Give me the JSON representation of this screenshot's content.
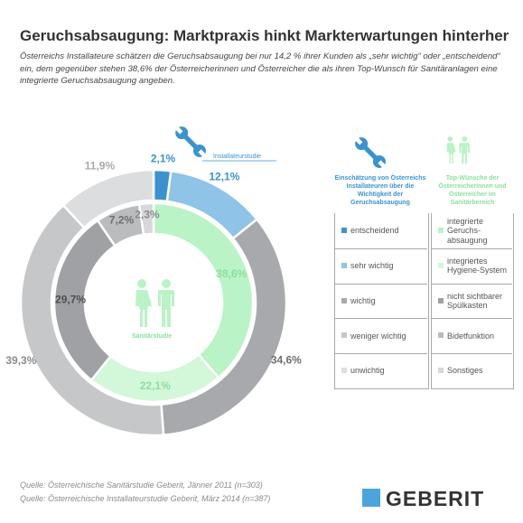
{
  "title": "Geruchsabsaugung: Marktpraxis hinkt Markterwartungen hinterher",
  "subtitle": "Österreichs Installateure schätzen die Geruchsabsaugung bei nur 14,2 % ihrer Kunden als „sehr wichtig“ oder „entscheidend“ ein, dem gegenüber stehen 38,6% der Österreicherinnen und Österreicher die als ihren Top-Wunsch für Sanitäranlagen eine integrierte Geruchsabsaugung angeben.",
  "chart_data": [
    {
      "type": "donut",
      "name": "Installateurstudie",
      "categories": [
        "entscheidend",
        "sehr wichtig",
        "wichtig",
        "weniger wichtig",
        "unwichtig"
      ],
      "values": [
        2.1,
        12.1,
        34.6,
        39.3,
        11.9
      ],
      "labels": [
        "2,1%",
        "12,1%",
        "34,6%",
        "39,3%",
        "11,9%"
      ]
    },
    {
      "type": "donut",
      "name": "Sanitärstudie",
      "categories": [
        "integrierte Geruchsabsaugung",
        "integriertes Hygiene-System",
        "nicht sichtbarer Spülkasten",
        "Bidetfunktion",
        "Sonstiges"
      ],
      "values": [
        38.6,
        22.1,
        29.7,
        7.2,
        2.3
      ],
      "labels": [
        "38,6%",
        "22,1%",
        "29,7%",
        "7,2%",
        "2,3%"
      ]
    }
  ],
  "colors": {
    "outer": [
      "#3a93cf",
      "#8fc3e7",
      "#a7a9ac",
      "#c6c7c9",
      "#dcdddf"
    ],
    "inner": [
      "#b9f3c6",
      "#d2f7d9",
      "#9fa1a4",
      "#bbbcbe",
      "#d6d7d9"
    ],
    "blue_text": "#3a93cf",
    "green_text": "#8de0a0"
  },
  "outer_label": "Installateurstudie",
  "inner_label": "Sanitärstudie",
  "icons": {
    "wrench": "wrench-icon",
    "people": "woman-man-icon"
  },
  "legend": {
    "left_header": "Einschätzung von Österreichs Installateuren über die Wichtigkeit der Geruchsabsaugung",
    "right_header": "Top-Wünsche der Österreicherinnen und Österreicher im Sanitärbereich",
    "left_items": [
      "entscheidend",
      "sehr wichtig",
      "wichtig",
      "weniger wichtig",
      "unwichtig"
    ],
    "right_items": [
      "integrierte Geruchs-absaugung",
      "integriertes Hygiene-System",
      "nicht sichtbarer Spülkasten",
      "Bidetfunktion",
      "Sonstiges"
    ]
  },
  "sources": [
    "Quelle: Österreichische Sanitärstudie Geberit, Jänner 2011 (n=303)",
    "Quelle: Österreichische Installateurstudie Geberit, März 2014 (n=387)"
  ],
  "logo_text": "GEBERIT"
}
